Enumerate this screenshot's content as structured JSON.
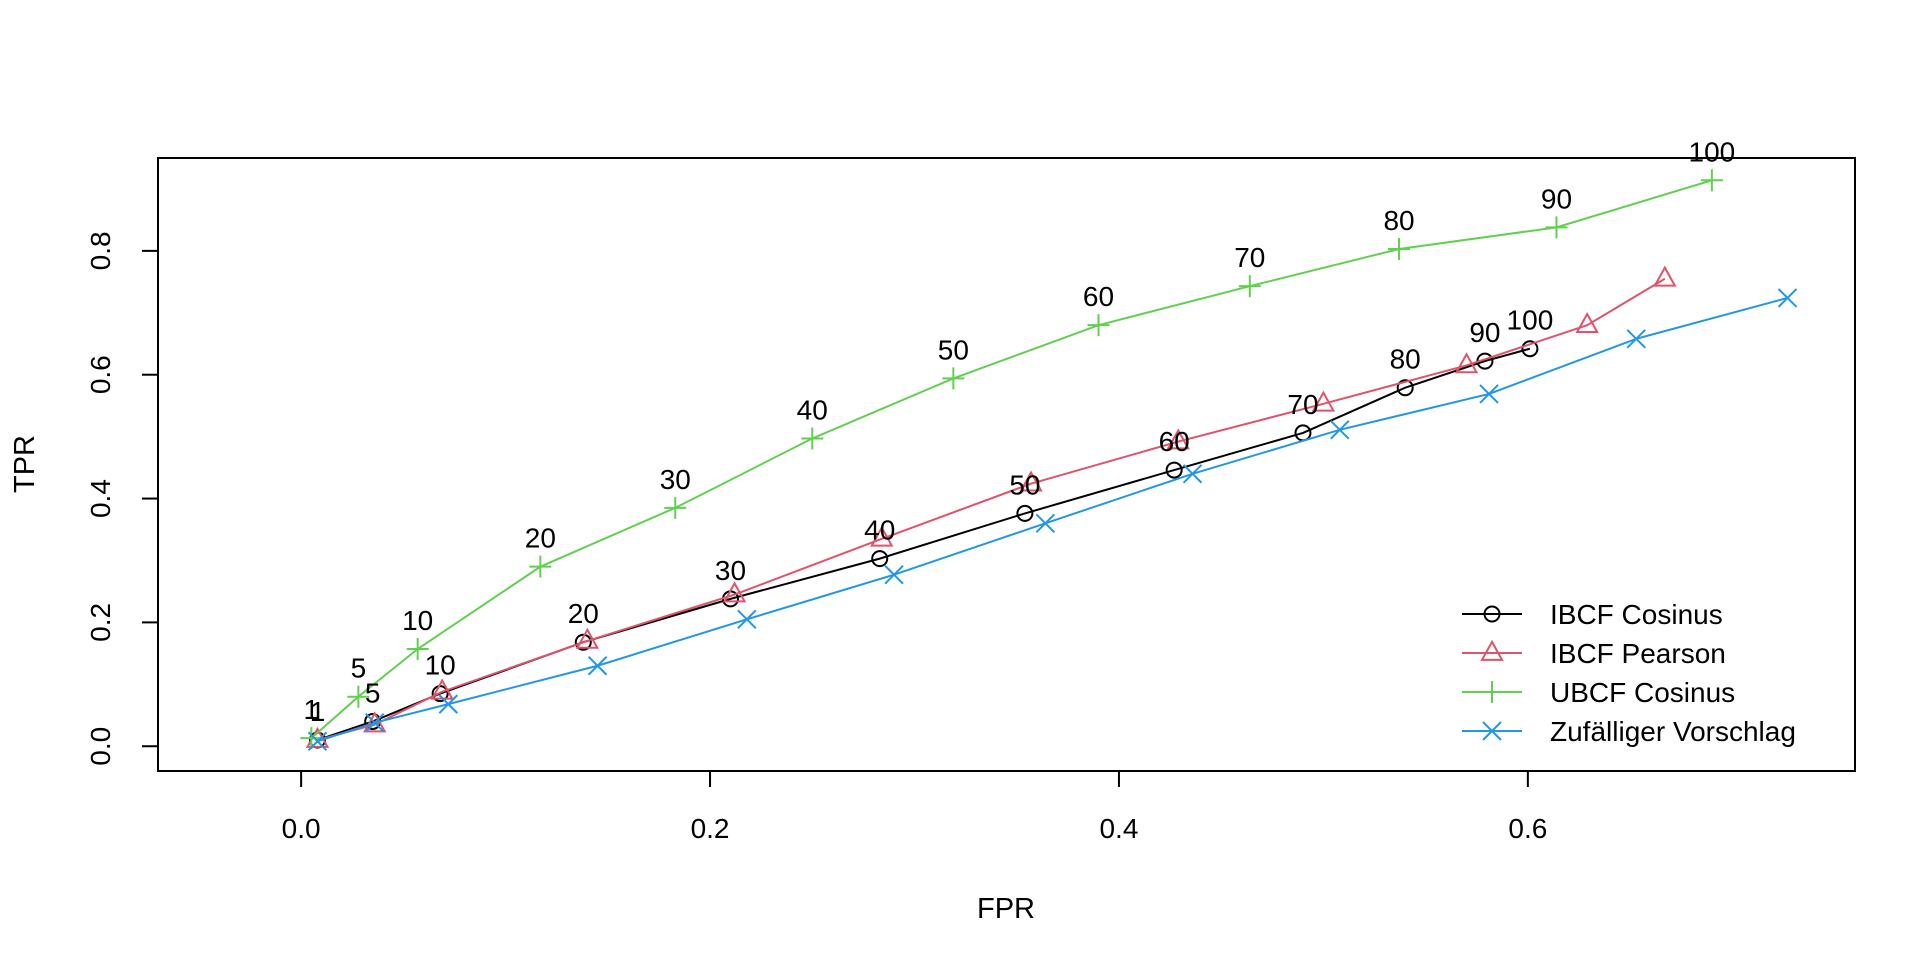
{
  "chart_data": {
    "type": "line",
    "title": "",
    "xlabel": "FPR",
    "ylabel": "TPR",
    "xlim": [
      -0.07,
      0.76
    ],
    "ylim": [
      -0.04,
      0.95
    ],
    "xticks": [
      "0.0",
      "0.2",
      "0.4",
      "0.6"
    ],
    "xtick_values": [
      0.0,
      0.2,
      0.4,
      0.6
    ],
    "yticks": [
      "0.0",
      "0.2",
      "0.4",
      "0.6",
      "0.8"
    ],
    "ytick_values": [
      0.0,
      0.2,
      0.4,
      0.6,
      0.8
    ],
    "grid": false,
    "legend_position": "bottom-right",
    "series": [
      {
        "name": "IBCF Cosinus",
        "color": "#000000",
        "marker": "circle",
        "x": [
          0.008,
          0.035,
          0.068,
          0.138,
          0.21,
          0.283,
          0.354,
          0.427,
          0.49,
          0.54,
          0.579,
          0.601
        ],
        "y": [
          0.01,
          0.04,
          0.085,
          0.168,
          0.238,
          0.303,
          0.376,
          0.446,
          0.506,
          0.579,
          0.622,
          0.642
        ],
        "labels": [
          "1",
          "5",
          "10",
          "20",
          "30",
          "40",
          "50",
          "60",
          "70",
          "80",
          "90",
          "100"
        ]
      },
      {
        "name": "IBCF Pearson",
        "color": "#DF536B",
        "marker": "triangle",
        "x": [
          0.008,
          0.036,
          0.069,
          0.14,
          0.212,
          0.284,
          0.357,
          0.429,
          0.5,
          0.57,
          0.629,
          0.667
        ],
        "y": [
          0.01,
          0.035,
          0.088,
          0.17,
          0.245,
          0.335,
          0.424,
          0.492,
          0.553,
          0.615,
          0.68,
          0.755
        ],
        "labels": []
      },
      {
        "name": "UBCF Cosinus",
        "color": "#61D04F",
        "marker": "plus",
        "x": [
          0.005,
          0.028,
          0.057,
          0.117,
          0.183,
          0.25,
          0.319,
          0.39,
          0.464,
          0.537,
          0.614,
          0.69
        ],
        "y": [
          0.013,
          0.08,
          0.157,
          0.29,
          0.385,
          0.497,
          0.594,
          0.68,
          0.743,
          0.803,
          0.838,
          0.914
        ],
        "labels": [
          "1",
          "5",
          "10",
          "20",
          "30",
          "40",
          "50",
          "60",
          "70",
          "80",
          "90",
          "100"
        ]
      },
      {
        "name": "Zufälliger Vorschlag",
        "color": "#2297E6",
        "marker": "x",
        "x": [
          0.008,
          0.036,
          0.072,
          0.145,
          0.218,
          0.29,
          0.364,
          0.436,
          0.508,
          0.581,
          0.653,
          0.727
        ],
        "y": [
          0.008,
          0.038,
          0.068,
          0.13,
          0.205,
          0.277,
          0.36,
          0.44,
          0.511,
          0.569,
          0.658,
          0.724
        ],
        "labels": []
      }
    ]
  }
}
